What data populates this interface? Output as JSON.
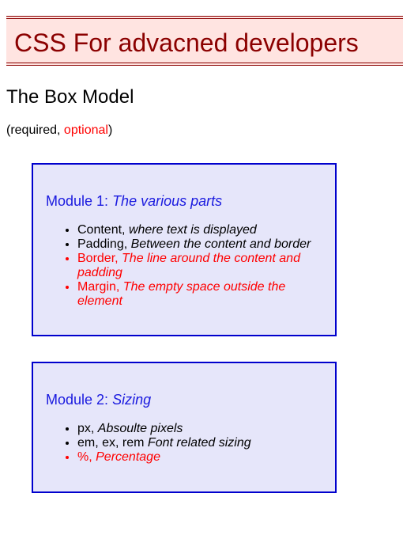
{
  "header": {
    "title": "CSS For advacned developers"
  },
  "section": {
    "title": "The Box Model"
  },
  "legend": {
    "open": "(",
    "required": "required",
    "separator": ", ",
    "optional": "optional",
    "close": ")"
  },
  "modules": [
    {
      "label": "Module 1: ",
      "subtitle": "The various parts",
      "items": [
        {
          "term": "Content",
          "separator": ", ",
          "description": "where text is displayed",
          "optional": false
        },
        {
          "term": "Padding",
          "separator": ", ",
          "description": "Between the content and border",
          "optional": false
        },
        {
          "term": "Border",
          "separator": ", ",
          "description": "The line around the content and padding",
          "optional": true
        },
        {
          "term": "Margin",
          "separator": ", ",
          "description": "The empty space outside the element",
          "optional": true
        }
      ]
    },
    {
      "label": "Module 2: ",
      "subtitle": "Sizing",
      "items": [
        {
          "term": "px",
          "separator": ", ",
          "description": "Absoulte pixels",
          "optional": false
        },
        {
          "term": "em, ex, rem",
          "separator": " ",
          "description": "Font related sizing",
          "optional": false
        },
        {
          "term": "%",
          "separator": ", ",
          "description": "Percentage",
          "optional": true
        }
      ]
    }
  ],
  "colors": {
    "banner_bg": "#ffe4e1",
    "banner_text": "#8b0000",
    "module_bg": "#e6e6fa",
    "module_border": "#0000cd",
    "module_heading": "#1a1adf",
    "optional_text": "#ff0000"
  }
}
